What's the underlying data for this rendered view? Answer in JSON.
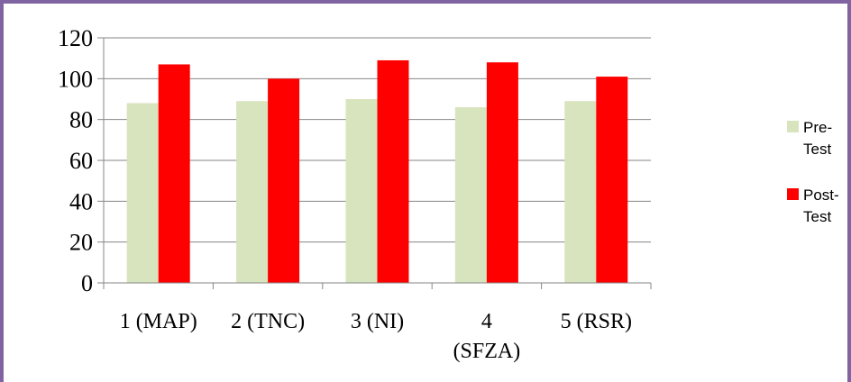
{
  "chart_data": {
    "type": "bar",
    "title": "",
    "xlabel": "",
    "ylabel": "",
    "ylim": [
      0,
      120
    ],
    "yticks": [
      "0",
      "20",
      "40",
      "60",
      "80",
      "100",
      "120"
    ],
    "categories": [
      [
        "1 (MAP)"
      ],
      [
        "2 (TNC)"
      ],
      [
        "3 (NI)"
      ],
      [
        "4",
        "(SFZA)"
      ],
      [
        "5 (RSR)"
      ]
    ],
    "series": [
      {
        "name": "Pre-Test",
        "legend_lines": [
          "Pre-",
          "Test"
        ],
        "color": "#d7e4bd",
        "values": [
          88,
          89,
          90,
          86,
          89
        ]
      },
      {
        "name": "Post-Test",
        "legend_lines": [
          "Post-",
          "Test"
        ],
        "color": "#ff0000",
        "values": [
          107,
          100,
          109,
          108,
          101
        ]
      }
    ],
    "grid": true,
    "legend_position": "right"
  },
  "colors": {
    "frame": "#8064a2",
    "grid": "#868686",
    "axis": "#868686"
  }
}
